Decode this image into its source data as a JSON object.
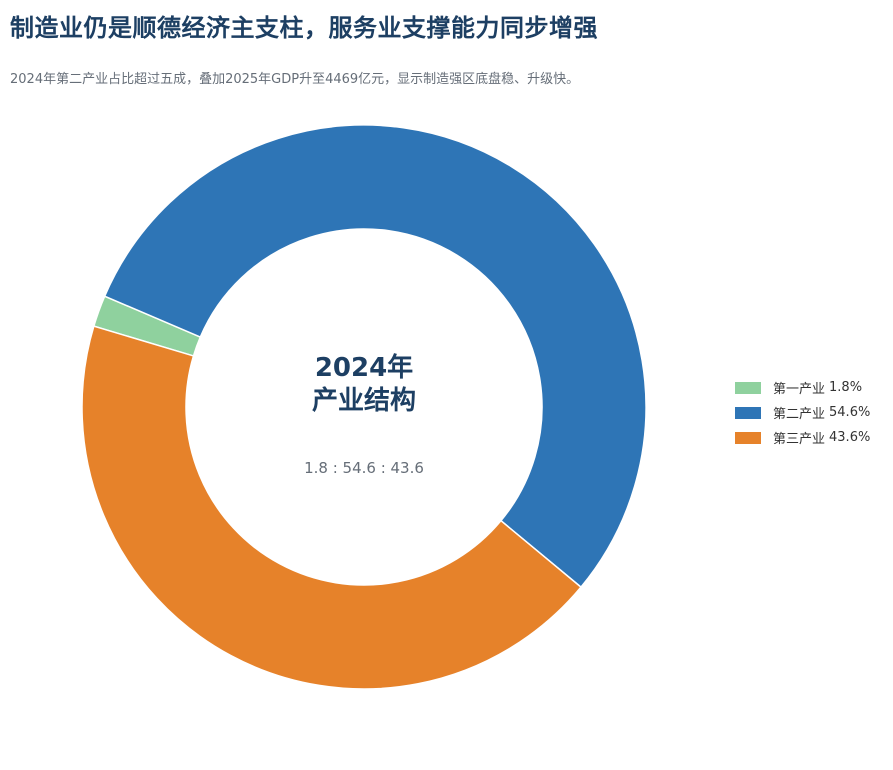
{
  "title": "制造业仍是顺德经济主支柱，服务业支撑能力同步增强",
  "subtitle": "2024年第二产业占比超过五成，叠加2025年GDP升至4469亿元，显示制造强区底盘稳、升级快。",
  "chart_data": {
    "type": "pie",
    "donut": true,
    "center_title_line1": "2024年",
    "center_title_line2": "产业结构",
    "center_ratio": "1.8 : 54.6 : 43.6",
    "legend_position": "right",
    "slices": [
      {
        "name": "第一产业",
        "value": 1.8,
        "label": "1.8%",
        "color": "#8fd19e"
      },
      {
        "name": "第二产业",
        "value": 54.6,
        "label": "54.6%",
        "color": "#2e75b6"
      },
      {
        "name": "第三产业",
        "value": 43.6,
        "label": "43.6%",
        "color": "#e6822a"
      }
    ]
  }
}
